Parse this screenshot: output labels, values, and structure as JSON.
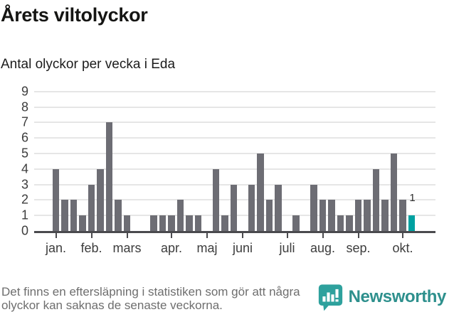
{
  "header": {
    "title": "Årets viltolyckor",
    "subtitle": "Antal olyckor per vecka i Eda"
  },
  "chart_data": {
    "type": "bar",
    "title": "Årets viltolyckor",
    "subtitle": "Antal olyckor per vecka i Eda",
    "x_unit": "week",
    "values": [
      4,
      2,
      2,
      1,
      3,
      4,
      7,
      2,
      1,
      0,
      0,
      1,
      1,
      1,
      2,
      1,
      1,
      0,
      4,
      1,
      3,
      0,
      3,
      5,
      2,
      3,
      0,
      1,
      0,
      3,
      2,
      2,
      1,
      1,
      2,
      2,
      4,
      2,
      5,
      2,
      1
    ],
    "highlight_last": true,
    "highlight_label": "1",
    "ylim": [
      0,
      9
    ],
    "yticks": [
      0,
      1,
      2,
      3,
      4,
      5,
      6,
      7,
      8,
      9
    ],
    "grid": "horizontal",
    "month_ticks": [
      {
        "label": "jan.",
        "week": 1
      },
      {
        "label": "feb.",
        "week": 5
      },
      {
        "label": "mars",
        "week": 9
      },
      {
        "label": "apr.",
        "week": 14
      },
      {
        "label": "maj",
        "week": 18
      },
      {
        "label": "juni",
        "week": 22
      },
      {
        "label": "juli",
        "week": 27
      },
      {
        "label": "aug.",
        "week": 31
      },
      {
        "label": "sep.",
        "week": 35
      },
      {
        "label": "okt.",
        "week": 40
      }
    ],
    "colors": {
      "bar": "#6d6d74",
      "highlight": "#00a1a1",
      "grid": "#e6e6e6",
      "axis": "#4a4a4e"
    }
  },
  "footer": {
    "note": "Det finns en eftersläpning i statistiken som gör att några\nolyckor kan saknas de senaste veckorna.",
    "brand": "Newsworthy"
  }
}
